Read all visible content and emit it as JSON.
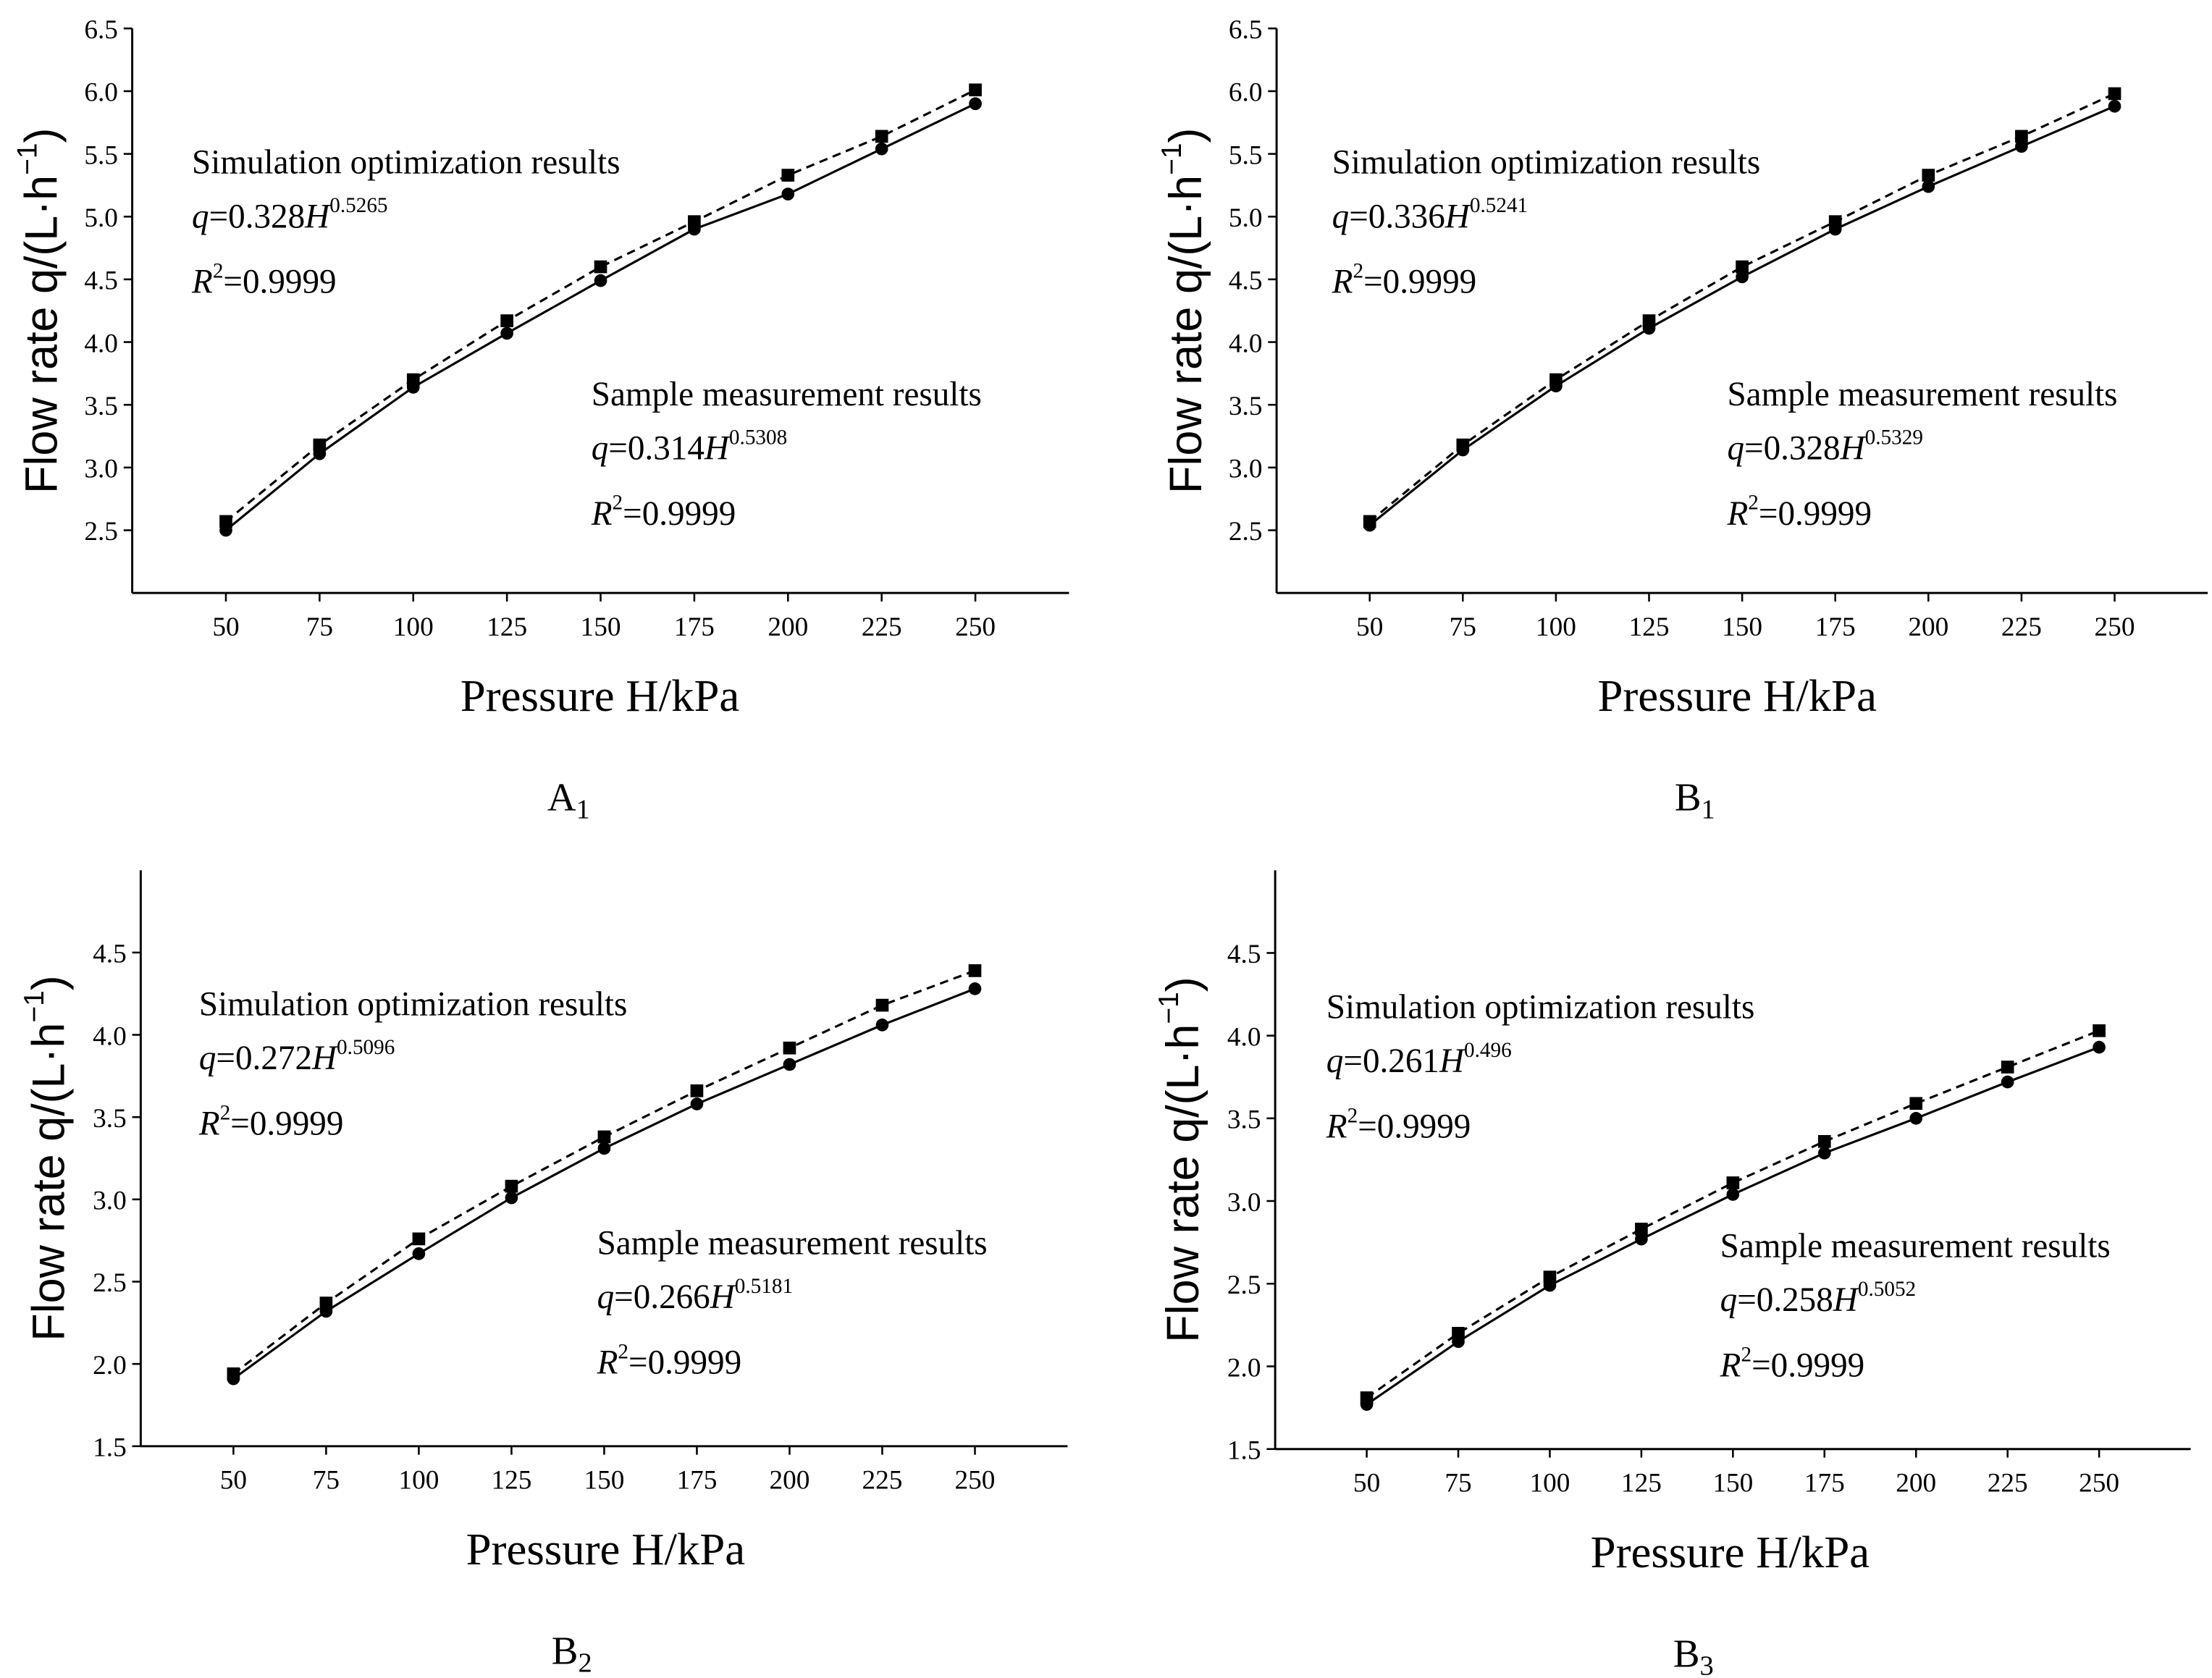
{
  "chart_data": [
    {
      "type": "line",
      "caption": {
        "letter": "A",
        "subscript": "1"
      },
      "xlabel": "Pressure H/kPa",
      "ylabel": {
        "text": "Flow rate q/(L·h",
        "exponent": "−1",
        "end": ")"
      },
      "x": [
        50,
        75,
        100,
        125,
        150,
        175,
        200,
        225,
        250
      ],
      "xlim": [
        25,
        275
      ],
      "xticks": [
        50,
        75,
        100,
        125,
        150,
        175,
        200,
        225,
        250
      ],
      "ylim": [
        2.0,
        6.5
      ],
      "yticks": [
        2.5,
        {
          "value": 3,
          "label": "3.0"
        },
        3.5,
        {
          "value": 4,
          "label": "4.0"
        },
        4.5,
        {
          "value": 5,
          "label": "5.0"
        },
        5.5,
        {
          "value": 6,
          "label": "6.0"
        },
        6.5
      ],
      "series": [
        {
          "name": "Simulation optimization results",
          "color": "#000000",
          "marker": "square",
          "dashed": true,
          "values": [
            2.57,
            3.18,
            3.7,
            4.17,
            4.6,
            4.96,
            5.33,
            5.64,
            6.01
          ],
          "equation": {
            "var": "q",
            "coef": "=0.328",
            "base": "H",
            "exponent": "0.5265"
          },
          "r2": {
            "var": "R",
            "exponent": "2",
            "value": "=0.9999"
          }
        },
        {
          "name": "Sample measurement results",
          "color": "#000000",
          "marker": "circle",
          "dashed": false,
          "values": [
            2.5,
            3.11,
            3.64,
            4.07,
            4.49,
            4.9,
            5.18,
            5.54,
            5.9
          ],
          "equation": {
            "var": "q",
            "coef": "=0.314",
            "base": "H",
            "exponent": "0.5308"
          },
          "r2": {
            "var": "R",
            "exponent": "2",
            "value": "=0.9999"
          }
        }
      ]
    },
    {
      "type": "line",
      "caption": {
        "letter": "B",
        "subscript": "1"
      },
      "xlabel": "Pressure H/kPa",
      "ylabel": {
        "text": "Flow rate q/(L·h",
        "exponent": "−1",
        "end": ")"
      },
      "x": [
        50,
        75,
        100,
        125,
        150,
        175,
        200,
        225,
        250
      ],
      "xlim": [
        25,
        275
      ],
      "xticks": [
        50,
        75,
        100,
        125,
        150,
        175,
        200,
        225,
        250
      ],
      "ylim": [
        2.0,
        6.5
      ],
      "yticks": [
        2.5,
        {
          "value": 3,
          "label": "3.0"
        },
        3.5,
        {
          "value": 4,
          "label": "4.0"
        },
        4.5,
        {
          "value": 5,
          "label": "5.0"
        },
        5.5,
        {
          "value": 6,
          "label": "6.0"
        },
        6.5
      ],
      "series": [
        {
          "name": "Simulation optimization results",
          "color": "#000000",
          "marker": "square",
          "dashed": true,
          "values": [
            2.57,
            3.18,
            3.7,
            4.17,
            4.6,
            4.96,
            5.33,
            5.64,
            5.98
          ],
          "equation": {
            "var": "q",
            "coef": "=0.336",
            "base": "H",
            "exponent": "0.5241"
          },
          "r2": {
            "var": "R",
            "exponent": "2",
            "value": "=0.9999"
          }
        },
        {
          "name": "Sample measurement results",
          "color": "#000000",
          "marker": "circle",
          "dashed": false,
          "values": [
            2.54,
            3.14,
            3.65,
            4.11,
            4.52,
            4.9,
            5.24,
            5.56,
            5.88
          ],
          "equation": {
            "var": "q",
            "coef": "=0.328",
            "base": "H",
            "exponent": "0.5329"
          },
          "r2": {
            "var": "R",
            "exponent": "2",
            "value": "=0.9999"
          }
        }
      ]
    },
    {
      "type": "line",
      "caption": {
        "letter": "B",
        "subscript": "2"
      },
      "xlabel": "Pressure H/kPa",
      "ylabel": {
        "text": "Flow rate q/(L·h",
        "exponent": "−1",
        "end": ")"
      },
      "x": [
        50,
        75,
        100,
        125,
        150,
        175,
        200,
        225,
        250
      ],
      "xlim": [
        25,
        275
      ],
      "xticks": [
        50,
        75,
        100,
        125,
        150,
        175,
        200,
        225,
        250
      ],
      "ylim": [
        1.5,
        5.0
      ],
      "yticks": [
        1.5,
        {
          "value": 2,
          "label": "2.0"
        },
        2.5,
        {
          "value": 3,
          "label": "3.0"
        },
        3.5,
        {
          "value": 4,
          "label": "4.0"
        },
        4.5
      ],
      "series": [
        {
          "name": "Simulation optimization results",
          "color": "#000000",
          "marker": "square",
          "dashed": true,
          "values": [
            1.94,
            2.37,
            2.76,
            3.08,
            3.38,
            3.66,
            3.92,
            4.18,
            4.39
          ],
          "equation": {
            "var": "q",
            "coef": "=0.272",
            "base": "H",
            "exponent": "0.5096"
          },
          "r2": {
            "var": "R",
            "exponent": "2",
            "value": "=0.9999"
          }
        },
        {
          "name": "Sample measurement results",
          "color": "#000000",
          "marker": "circle",
          "dashed": false,
          "values": [
            1.91,
            2.32,
            2.67,
            3.01,
            3.31,
            3.58,
            3.82,
            4.06,
            4.28
          ],
          "equation": {
            "var": "q",
            "coef": "=0.266",
            "base": "H",
            "exponent": "0.5181"
          },
          "r2": {
            "var": "R",
            "exponent": "2",
            "value": "=0.9999"
          }
        }
      ]
    },
    {
      "type": "line",
      "caption": {
        "letter": "B",
        "subscript": "3"
      },
      "xlabel": "Pressure H/kPa",
      "ylabel": {
        "text": "Flow rate q/(L·h",
        "exponent": "−1",
        "end": ")"
      },
      "x": [
        50,
        75,
        100,
        125,
        150,
        175,
        200,
        225,
        250
      ],
      "xlim": [
        25,
        275
      ],
      "xticks": [
        50,
        75,
        100,
        125,
        150,
        175,
        200,
        225,
        250
      ],
      "ylim": [
        1.5,
        5.0
      ],
      "yticks": [
        1.5,
        {
          "value": 2,
          "label": "2.0"
        },
        2.5,
        {
          "value": 3,
          "label": "3.0"
        },
        3.5,
        {
          "value": 4,
          "label": "4.0"
        },
        4.5
      ],
      "series": [
        {
          "name": "Simulation optimization results",
          "color": "#000000",
          "marker": "square",
          "dashed": true,
          "values": [
            1.81,
            2.2,
            2.54,
            2.83,
            3.11,
            3.36,
            3.59,
            3.81,
            4.03
          ],
          "equation": {
            "var": "q",
            "coef": "=0.261",
            "base": "H",
            "exponent": "0.496"
          },
          "r2": {
            "var": "R",
            "exponent": "2",
            "value": "=0.9999"
          }
        },
        {
          "name": "Sample measurement results",
          "color": "#000000",
          "marker": "circle",
          "dashed": false,
          "values": [
            1.77,
            2.15,
            2.49,
            2.77,
            3.04,
            3.29,
            3.5,
            3.72,
            3.93
          ],
          "equation": {
            "var": "q",
            "coef": "=0.258",
            "base": "H",
            "exponent": "0.5052"
          },
          "r2": {
            "var": "R",
            "exponent": "2",
            "value": "=0.9999"
          }
        }
      ]
    }
  ]
}
